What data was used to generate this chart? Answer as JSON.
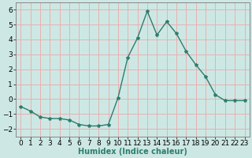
{
  "x": [
    0,
    1,
    2,
    3,
    4,
    5,
    6,
    7,
    8,
    9,
    10,
    11,
    12,
    13,
    14,
    15,
    16,
    17,
    18,
    19,
    20,
    21,
    22,
    23
  ],
  "y": [
    -0.5,
    -0.8,
    -1.2,
    -1.3,
    -1.3,
    -1.4,
    -1.7,
    -1.8,
    -1.8,
    -1.7,
    0.1,
    2.8,
    4.1,
    5.9,
    4.3,
    5.2,
    4.4,
    3.2,
    2.3,
    1.5,
    0.3,
    -0.1,
    -0.1,
    -0.1
  ],
  "line_color": "#2e7d6e",
  "marker": "*",
  "marker_size": 3,
  "bg_color": "#cde8e4",
  "grid_color": "#e8b0b0",
  "xlabel": "Humidex (Indice chaleur)",
  "ylabel": "",
  "xlim": [
    -0.5,
    23.5
  ],
  "ylim": [
    -2.5,
    6.5
  ],
  "yticks": [
    -2,
    -1,
    0,
    1,
    2,
    3,
    4,
    5,
    6
  ],
  "xticks": [
    0,
    1,
    2,
    3,
    4,
    5,
    6,
    7,
    8,
    9,
    10,
    11,
    12,
    13,
    14,
    15,
    16,
    17,
    18,
    19,
    20,
    21,
    22,
    23
  ],
  "xlabel_fontsize": 7,
  "tick_fontsize": 6.5
}
